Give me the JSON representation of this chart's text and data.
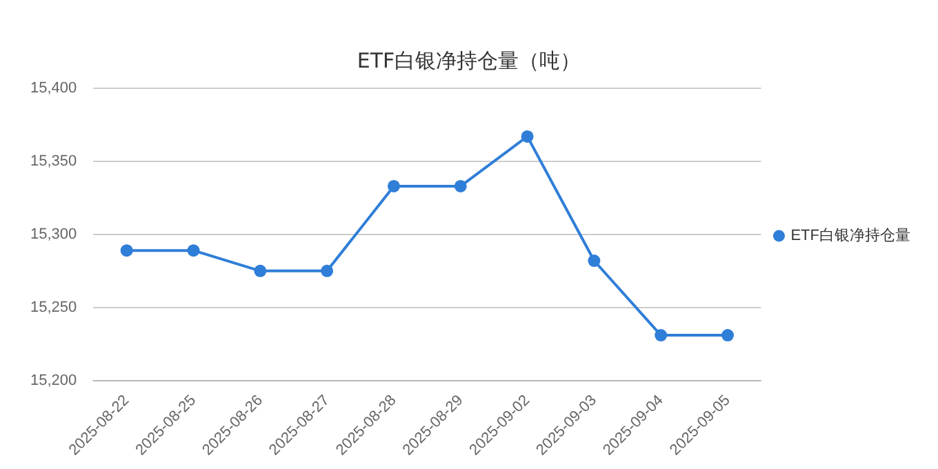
{
  "chart_data": {
    "type": "line",
    "title": "ETF白银净持仓量（吨）",
    "categories": [
      "2025-08-22",
      "2025-08-25",
      "2025-08-26",
      "2025-08-27",
      "2025-08-28",
      "2025-08-29",
      "2025-09-02",
      "2025-09-03",
      "2025-09-04",
      "2025-09-05"
    ],
    "series": [
      {
        "name": "ETF白银净持仓量",
        "color": "#2f7ed8",
        "values": [
          15289,
          15289,
          15275,
          15275,
          15333,
          15333,
          15367,
          15282,
          15231,
          15231
        ]
      }
    ],
    "ylim": [
      15200,
      15400
    ],
    "yticks": [
      {
        "value": 15200,
        "label": "15,200"
      },
      {
        "value": 15250,
        "label": "15,250"
      },
      {
        "value": 15300,
        "label": "15,300"
      },
      {
        "value": 15350,
        "label": "15,350"
      },
      {
        "value": 15400,
        "label": "15,400"
      }
    ],
    "grid": "y",
    "legend": "right",
    "marker": "circle",
    "line_style": "solid"
  }
}
